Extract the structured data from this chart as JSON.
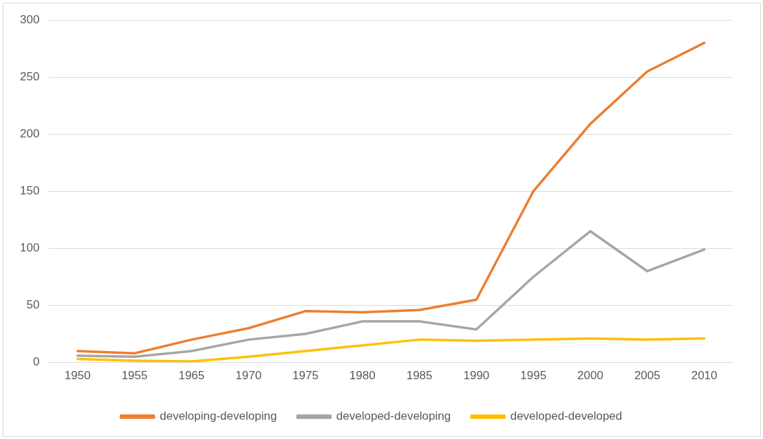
{
  "chart_data": {
    "type": "line",
    "categories": [
      "1950",
      "1955",
      "1965",
      "1970",
      "1975",
      "1980",
      "1985",
      "1990",
      "1995",
      "2000",
      "2005",
      "2010"
    ],
    "series": [
      {
        "name": "developing-developing",
        "color": "#ed7d31",
        "values": [
          10,
          8,
          20,
          30,
          45,
          44,
          46,
          55,
          150,
          209,
          255,
          280
        ]
      },
      {
        "name": "developed-developing",
        "color": "#a5a5a5",
        "values": [
          6,
          5,
          10,
          20,
          25,
          36,
          36,
          29,
          75,
          115,
          80,
          99
        ]
      },
      {
        "name": "developed-developed",
        "color": "#ffc000",
        "values": [
          3,
          1.5,
          1,
          5,
          10,
          15,
          20,
          19,
          20,
          21,
          20,
          21
        ]
      }
    ],
    "ylim": [
      0,
      300
    ],
    "yticks": [
      0,
      50,
      100,
      150,
      200,
      250,
      300
    ],
    "grid": "y",
    "legend": "bottom",
    "marker": "none",
    "line_style": "solid"
  }
}
